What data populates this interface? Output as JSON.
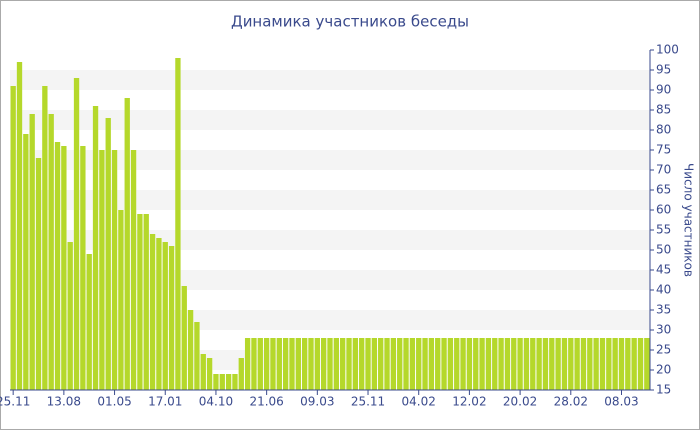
{
  "chart_data": {
    "type": "bar",
    "title": "Динамика участников беседы",
    "y_axis_label": "Число участников",
    "categories": [
      "25.11",
      null,
      null,
      null,
      null,
      null,
      null,
      null,
      "13.08",
      null,
      null,
      null,
      null,
      null,
      null,
      null,
      "01.05",
      null,
      null,
      null,
      null,
      null,
      null,
      null,
      "17.01",
      null,
      null,
      null,
      null,
      null,
      null,
      null,
      "04.10",
      null,
      null,
      null,
      null,
      null,
      null,
      null,
      "21.06",
      null,
      null,
      null,
      null,
      null,
      null,
      null,
      "09.03",
      null,
      null,
      null,
      null,
      null,
      null,
      null,
      "25.11",
      null,
      null,
      null,
      null,
      null,
      null,
      null,
      "04.02",
      null,
      null,
      null,
      null,
      null,
      null,
      null,
      "12.02",
      null,
      null,
      null,
      null,
      null,
      null,
      null,
      "20.02",
      null,
      null,
      null,
      null,
      null,
      null,
      null,
      "28.02",
      null,
      null,
      null,
      null,
      null,
      null,
      null,
      "08.03",
      null,
      null,
      null,
      null
    ],
    "values": [
      91,
      97,
      79,
      84,
      73,
      91,
      84,
      77,
      76,
      52,
      93,
      76,
      49,
      86,
      75,
      83,
      75,
      60,
      88,
      75,
      59,
      59,
      54,
      53,
      52,
      51,
      98,
      41,
      35,
      32,
      24,
      23,
      19,
      19,
      19,
      19,
      23,
      28,
      28,
      28,
      28,
      28,
      28,
      28,
      28,
      28,
      28,
      28,
      28,
      28,
      28,
      28,
      28,
      28,
      28,
      28,
      28,
      28,
      28,
      28,
      28,
      28,
      28,
      28,
      28,
      28,
      28,
      28,
      28,
      28,
      28,
      28,
      28,
      28,
      28,
      28,
      28,
      28,
      28,
      28,
      28,
      28,
      28,
      28,
      28,
      28,
      28,
      28,
      28,
      28,
      28,
      28,
      28,
      28,
      28,
      28,
      28,
      28,
      28,
      28,
      28
    ],
    "color": "#b5d82b",
    "ylim": [
      15,
      100
    ],
    "yticks": [
      15,
      20,
      25,
      30,
      35,
      40,
      45,
      50,
      55,
      60,
      65,
      70,
      75,
      80,
      85,
      90,
      95,
      100
    ],
    "grid": true
  }
}
